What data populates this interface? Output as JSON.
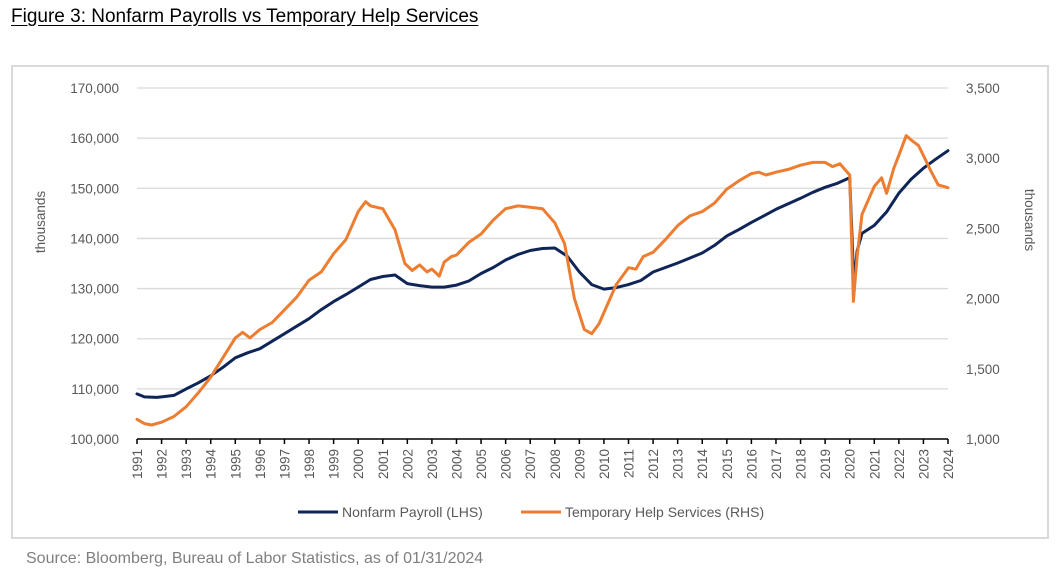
{
  "figure": {
    "title": "Figure 3: Nonfarm Payrolls vs Temporary Help Services",
    "source": "Source: Bloomberg, Bureau of Labor Statistics, as of 01/31/2024"
  },
  "chart_data": {
    "type": "line",
    "title": "Figure 3: Nonfarm Payrolls vs Temporary Help Services",
    "xlabel": "",
    "ylabel_left": "thousands",
    "ylabel_right": "thousands",
    "xlim": [
      1991,
      2024
    ],
    "ylim_left": [
      100000,
      170000
    ],
    "ylim_right": [
      1000,
      3500
    ],
    "grid": true,
    "legend_position": "bottom",
    "x_ticks": [
      "1991",
      "1992",
      "1993",
      "1994",
      "1995",
      "1996",
      "1997",
      "1998",
      "1999",
      "2000",
      "2001",
      "2002",
      "2003",
      "2004",
      "2005",
      "2006",
      "2007",
      "2008",
      "2009",
      "2010",
      "2011",
      "2012",
      "2013",
      "2014",
      "2015",
      "2016",
      "2017",
      "2018",
      "2019",
      "2020",
      "2021",
      "2022",
      "2023",
      "2024"
    ],
    "y_ticks_left": [
      "100,000",
      "110,000",
      "120,000",
      "130,000",
      "140,000",
      "150,000",
      "160,000",
      "170,000"
    ],
    "y_ticks_right": [
      "1,000",
      "1,500",
      "2,000",
      "2,500",
      "3,000",
      "3,500"
    ],
    "series": [
      {
        "name": "Nonfarm Payroll (LHS)",
        "axis": "left",
        "color": "#0f2557",
        "x": [
          1991.0,
          1991.3,
          1991.8,
          1992.0,
          1992.5,
          1993.0,
          1993.5,
          1994.0,
          1994.5,
          1995.0,
          1995.5,
          1996.0,
          1996.5,
          1997.0,
          1997.5,
          1998.0,
          1998.5,
          1999.0,
          1999.5,
          2000.0,
          2000.5,
          2001.0,
          2001.5,
          2002.0,
          2002.5,
          2003.0,
          2003.5,
          2004.0,
          2004.5,
          2005.0,
          2005.5,
          2006.0,
          2006.5,
          2007.0,
          2007.5,
          2008.0,
          2008.5,
          2009.0,
          2009.5,
          2010.0,
          2010.5,
          2011.0,
          2011.5,
          2012.0,
          2012.5,
          2013.0,
          2013.5,
          2014.0,
          2014.5,
          2015.0,
          2015.5,
          2016.0,
          2016.5,
          2017.0,
          2017.5,
          2018.0,
          2018.5,
          2019.0,
          2019.5,
          2020.0,
          2020.17,
          2020.3,
          2020.5,
          2021.0,
          2021.5,
          2022.0,
          2022.5,
          2023.0,
          2023.5,
          2024.0
        ],
        "values": [
          109000,
          108400,
          108300,
          108400,
          108700,
          110000,
          111200,
          112600,
          114300,
          116200,
          117200,
          118000,
          119500,
          121000,
          122500,
          124000,
          125800,
          127400,
          128800,
          130300,
          131800,
          132400,
          132700,
          131000,
          130600,
          130300,
          130300,
          130700,
          131500,
          133000,
          134200,
          135700,
          136800,
          137600,
          138000,
          138100,
          136500,
          133300,
          130800,
          129900,
          130200,
          130800,
          131600,
          133300,
          134200,
          135100,
          136100,
          137100,
          138600,
          140500,
          141800,
          143200,
          144500,
          145800,
          146900,
          148000,
          149200,
          150200,
          151000,
          152100,
          130800,
          137500,
          141000,
          142600,
          145300,
          149000,
          151800,
          154000,
          155800,
          157500
        ]
      },
      {
        "name": "Temporary Help Services (RHS)",
        "axis": "right",
        "color": "#ed7d31",
        "x": [
          1991.0,
          1991.3,
          1991.6,
          1992.0,
          1992.5,
          1993.0,
          1993.5,
          1994.0,
          1994.5,
          1995.0,
          1995.3,
          1995.6,
          1996.0,
          1996.5,
          1997.0,
          1997.5,
          1998.0,
          1998.5,
          1999.0,
          1999.5,
          2000.0,
          2000.3,
          2000.5,
          2001.0,
          2001.5,
          2001.9,
          2002.2,
          2002.5,
          2002.8,
          2003.0,
          2003.3,
          2003.5,
          2003.8,
          2004.0,
          2004.5,
          2005.0,
          2005.5,
          2006.0,
          2006.5,
          2007.0,
          2007.5,
          2008.0,
          2008.4,
          2008.8,
          2009.2,
          2009.5,
          2009.8,
          2010.0,
          2010.5,
          2011.0,
          2011.3,
          2011.6,
          2012.0,
          2012.5,
          2013.0,
          2013.5,
          2014.0,
          2014.5,
          2015.0,
          2015.5,
          2016.0,
          2016.3,
          2016.6,
          2017.0,
          2017.5,
          2018.0,
          2018.5,
          2019.0,
          2019.3,
          2019.6,
          2020.0,
          2020.15,
          2020.3,
          2020.5,
          2021.0,
          2021.3,
          2021.5,
          2021.8,
          2022.0,
          2022.3,
          2022.5,
          2022.8,
          2023.0,
          2023.3,
          2023.6,
          2024.0
        ],
        "values": [
          1140,
          1110,
          1100,
          1120,
          1160,
          1230,
          1330,
          1440,
          1580,
          1720,
          1760,
          1720,
          1780,
          1830,
          1920,
          2010,
          2130,
          2190,
          2320,
          2420,
          2620,
          2690,
          2660,
          2640,
          2490,
          2250,
          2200,
          2240,
          2190,
          2210,
          2160,
          2260,
          2300,
          2310,
          2400,
          2460,
          2560,
          2640,
          2660,
          2650,
          2640,
          2540,
          2390,
          2000,
          1780,
          1750,
          1820,
          1900,
          2100,
          2220,
          2210,
          2300,
          2330,
          2420,
          2520,
          2590,
          2620,
          2680,
          2780,
          2840,
          2890,
          2900,
          2880,
          2900,
          2920,
          2950,
          2970,
          2970,
          2940,
          2960,
          2880,
          1980,
          2300,
          2600,
          2800,
          2860,
          2750,
          2930,
          3020,
          3160,
          3130,
          3090,
          3020,
          2910,
          2810,
          2790
        ]
      }
    ]
  },
  "legend": {
    "items": [
      {
        "label": "Nonfarm Payroll (LHS)",
        "color": "#0f2557"
      },
      {
        "label": "Temporary Help Services (RHS)",
        "color": "#ed7d31"
      }
    ]
  }
}
